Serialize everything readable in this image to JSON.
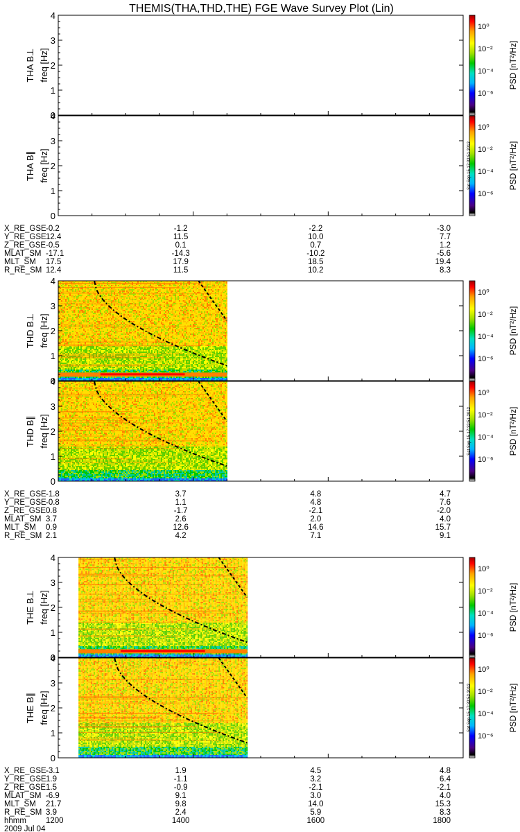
{
  "title": "THEMIS(THA,THD,THE) FGE Wave Survey Plot (Lin)",
  "colorbar": {
    "label": "PSD [nT²/Hz]",
    "ticks": [
      "10⁰",
      "10⁻²",
      "10⁻⁴",
      "10⁻⁶"
    ],
    "colors": [
      "#ffffff",
      "#000000",
      "#4b0082",
      "#0000ff",
      "#00b4ff",
      "#00e0c0",
      "#00c800",
      "#a0e000",
      "#ffff00",
      "#ffa000",
      "#ff0000",
      "#a00000"
    ]
  },
  "stamps": [
    "Sat Sep 15 17:32:51 2012",
    "Sat Sep 15 17:32:51 2012",
    "Sat Sep 15 17:32:52 2012"
  ],
  "freq_ticks": [
    "0",
    "1",
    "2",
    "3",
    "4"
  ],
  "chart_data": [
    {
      "type": "heatmap",
      "probe": "THA",
      "panels": [
        {
          "label": "THA B⊥",
          "ylabel": "freq [Hz]",
          "ylim": [
            0,
            4
          ],
          "data_xrange": null,
          "low_band_peak": false
        },
        {
          "label": "THA B∥",
          "ylabel": "freq [Hz]",
          "ylim": [
            0,
            4
          ],
          "data_xrange": null,
          "low_band_peak": false
        }
      ],
      "x_range": [
        1200,
        1800
      ],
      "ephemeris": {
        "rows": [
          {
            "name": "X_RE_GSE",
            "values": [
              "-0.2",
              "-1.2",
              "-2.2",
              "-3.0"
            ]
          },
          {
            "name": "Y_RE_GSE",
            "values": [
              "12.4",
              "11.5",
              "10.0",
              "7.7"
            ]
          },
          {
            "name": "Z_RE_GSE",
            "values": [
              "-0.5",
              "0.1",
              "0.7",
              "1.2"
            ]
          },
          {
            "name": "MLAT_SM",
            "values": [
              "-17.1",
              "-14.3",
              "-10.2",
              "-5.6"
            ]
          },
          {
            "name": "MLT_SM",
            "values": [
              "17.5",
              "17.9",
              "18.5",
              "19.4"
            ]
          },
          {
            "name": "R_RE_SM",
            "values": [
              "12.4",
              "11.5",
              "10.2",
              "8.3"
            ]
          }
        ]
      }
    },
    {
      "type": "heatmap",
      "probe": "THD",
      "panels": [
        {
          "label": "THD B⊥",
          "ylabel": "freq [Hz]",
          "ylim": [
            0,
            4
          ],
          "data_xrange": [
            1200,
            1450
          ],
          "low_band_peak": true
        },
        {
          "label": "THD B∥",
          "ylabel": "freq [Hz]",
          "ylim": [
            0,
            4
          ],
          "data_xrange": [
            1200,
            1450
          ],
          "low_band_peak": false
        }
      ],
      "x_range": [
        1200,
        1800
      ],
      "ephemeris": {
        "rows": [
          {
            "name": "X_RE_GSE",
            "values": [
              "-1.8",
              "3.7",
              "4.8",
              "4.7"
            ]
          },
          {
            "name": "Y_RE_GSE",
            "values": [
              "-0.8",
              "1.1",
              "4.8",
              "7.6"
            ]
          },
          {
            "name": "Z_RE_GSE",
            "values": [
              "0.8",
              "-1.7",
              "-2.1",
              "-2.0"
            ]
          },
          {
            "name": "MLAT_SM",
            "values": [
              "3.7",
              "2.6",
              "2.0",
              "4.0"
            ]
          },
          {
            "name": "MLT_SM",
            "values": [
              "0.9",
              "12.6",
              "14.6",
              "15.7"
            ]
          },
          {
            "name": "R_RE_SM",
            "values": [
              "2.1",
              "4.2",
              "7.1",
              "9.1"
            ]
          }
        ]
      }
    },
    {
      "type": "heatmap",
      "probe": "THE",
      "panels": [
        {
          "label": "THE B⊥",
          "ylabel": "freq [Hz]",
          "ylim": [
            0,
            4
          ],
          "data_xrange": [
            1230,
            1480
          ],
          "low_band_peak": true
        },
        {
          "label": "THE B∥",
          "ylabel": "freq [Hz]",
          "ylim": [
            0,
            4
          ],
          "data_xrange": [
            1230,
            1480
          ],
          "low_band_peak": false
        }
      ],
      "x_range": [
        1200,
        1800
      ],
      "ephemeris": {
        "rows": [
          {
            "name": "X_RE_GSE",
            "values": [
              "-3.1",
              "1.9",
              "4.5",
              "4.8"
            ]
          },
          {
            "name": "Y_RE_GSE",
            "values": [
              "1.9",
              "-1.1",
              "3.2",
              "6.4"
            ]
          },
          {
            "name": "Z_RE_GSE",
            "values": [
              "1.5",
              "-0.9",
              "-2.1",
              "-2.1"
            ]
          },
          {
            "name": "MLAT_SM",
            "values": [
              "-6.9",
              "9.1",
              "3.0",
              "4.0"
            ]
          },
          {
            "name": "MLT_SM",
            "values": [
              "21.7",
              "9.8",
              "14.0",
              "15.3"
            ]
          },
          {
            "name": "R_RE_SM",
            "values": [
              "3.9",
              "2.4",
              "5.9",
              "8.3"
            ]
          }
        ]
      },
      "time_axis": {
        "name": "hhmm",
        "values": [
          "1200",
          "1400",
          "1600",
          "1800"
        ],
        "date": "2009 Jul 04"
      }
    }
  ]
}
